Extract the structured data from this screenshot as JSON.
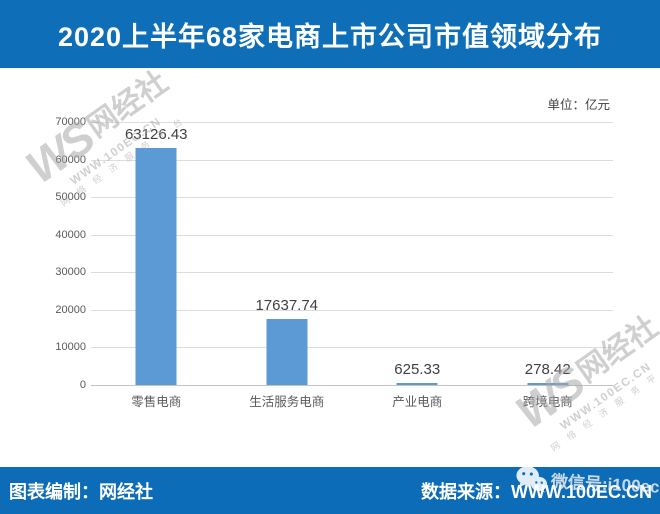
{
  "header": {
    "title": "2020上半年68家电商上市公司市值领域分布"
  },
  "chart_data": {
    "type": "bar",
    "title": "2020上半年68家电商上市公司市值领域分布",
    "unit_label": "单位：亿元",
    "categories": [
      "零售电商",
      "生活服务电商",
      "产业电商",
      "跨境电商"
    ],
    "values": [
      63126.43,
      17637.74,
      625.33,
      278.42
    ],
    "value_labels": [
      "63126.43",
      "17637.74",
      "625.33",
      "278.42"
    ],
    "xlabel": "",
    "ylabel": "",
    "ylim": [
      0,
      70000
    ],
    "yticks": [
      0,
      10000,
      20000,
      30000,
      40000,
      50000,
      60000,
      70000
    ],
    "grid": true,
    "legend": false,
    "bar_color": "#5B9AD5"
  },
  "watermark": {
    "logo_text": "WS",
    "brand": "网经社",
    "site": "WWW.100EC.CN",
    "tagline": "网 络 经 济 服 务 平 台",
    "wechat_label": "微信号:i100ec"
  },
  "footer": {
    "left": "图表编制：网经社",
    "right_prefix": "数据来源：",
    "right_site": "WWW.100EC.CN"
  },
  "colors": {
    "banner_blue": "#0E6FB8",
    "footer_blue": "#0D6CB8",
    "bar_blue": "#5B9AD5",
    "gridline_gray": "#DCDCDC"
  }
}
